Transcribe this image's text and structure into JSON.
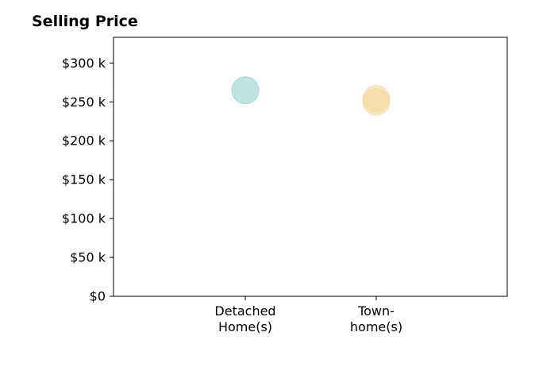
{
  "chart_data": {
    "type": "scatter",
    "title": "Selling Price",
    "xlabel": "",
    "ylabel": "",
    "categories": [
      [
        "Detached",
        "Home(s)"
      ],
      [
        "Town-",
        "home(s)"
      ]
    ],
    "y_ticks": [
      {
        "value": 0,
        "label": "$0"
      },
      {
        "value": 50,
        "label": "$50 k"
      },
      {
        "value": 100,
        "label": "$100 k"
      },
      {
        "value": 150,
        "label": "$150 k"
      },
      {
        "value": 200,
        "label": "$200 k"
      },
      {
        "value": 250,
        "label": "$250 k"
      },
      {
        "value": 300,
        "label": "$300 k"
      }
    ],
    "ylim": [
      0,
      333
    ],
    "grid": false,
    "points": [
      {
        "category": 0,
        "y": 265,
        "color": "#7fc8c0"
      },
      {
        "category": 1,
        "y": 254,
        "color": "#f3d48f"
      },
      {
        "category": 1,
        "y": 250,
        "color": "#f3d48f"
      }
    ]
  }
}
